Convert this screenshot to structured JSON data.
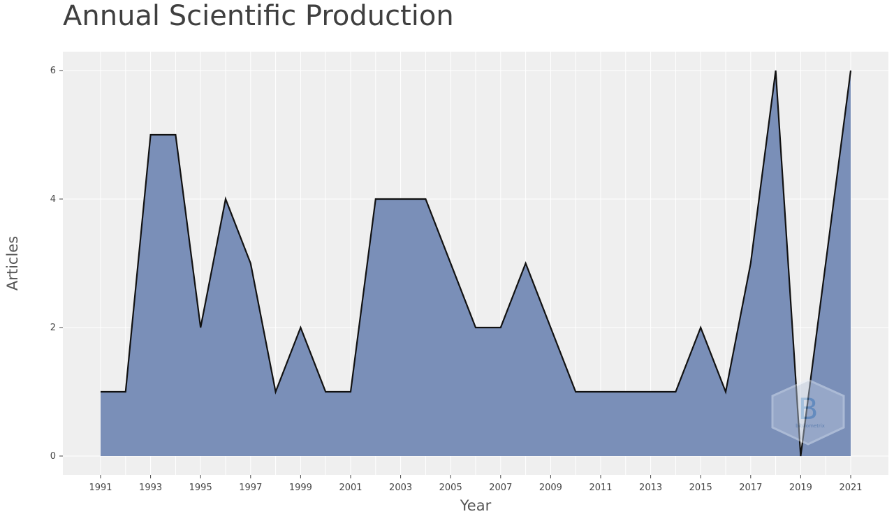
{
  "chart_data": {
    "type": "area",
    "title": "Annual Scientific Production",
    "xlabel": "Year",
    "ylabel": "Articles",
    "x": [
      1991,
      1992,
      1993,
      1994,
      1995,
      1996,
      1997,
      1998,
      1999,
      2000,
      2001,
      2002,
      2003,
      2004,
      2005,
      2006,
      2007,
      2008,
      2009,
      2010,
      2011,
      2012,
      2013,
      2014,
      2015,
      2016,
      2017,
      2018,
      2019,
      2020,
      2021
    ],
    "values": [
      1,
      1,
      5,
      5,
      2,
      4,
      3,
      1,
      2,
      1,
      1,
      4,
      4,
      4,
      3,
      2,
      2,
      3,
      2,
      1,
      1,
      1,
      1,
      1,
      2,
      1,
      3,
      6,
      0,
      3,
      6
    ],
    "xlim": [
      1991,
      2021
    ],
    "ylim": [
      0,
      6
    ],
    "x_ticks": [
      "1991",
      "1993",
      "1995",
      "1997",
      "1999",
      "2001",
      "2003",
      "2005",
      "2007",
      "2009",
      "2011",
      "2013",
      "2015",
      "2017",
      "2019",
      "2021"
    ],
    "y_ticks": [
      "0",
      "2",
      "4",
      "6"
    ],
    "grid": true,
    "legend": "none",
    "colors": {
      "fill": "#7a8fb8",
      "line": "#111111",
      "plot_background": "#efefef",
      "grid": "#ffffff"
    }
  },
  "watermark": {
    "icon": "bibliometrix-logo-icon",
    "text": "bibliometrix"
  }
}
